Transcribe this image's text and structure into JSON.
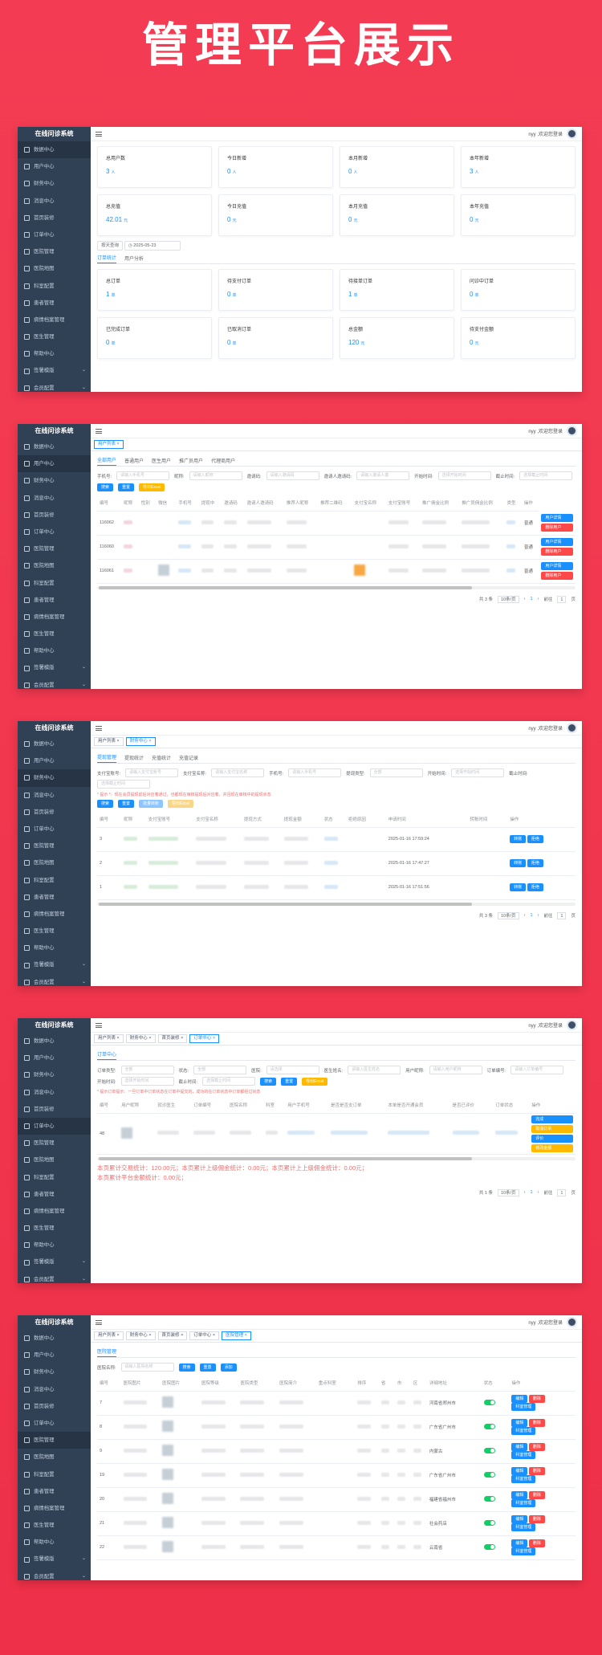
{
  "hero": {
    "title": "管理平台展示"
  },
  "app": {
    "brand": "在线问诊系统",
    "greeting": "nyy ,欢迎您登录"
  },
  "sidebar": {
    "items": [
      "数据中心",
      "用户中心",
      "财务中心",
      "消息中心",
      "首页装修",
      "订单中心",
      "医院管理",
      "医院地图",
      "科室配置",
      "患者管理",
      "病情档案管理",
      "医生管理",
      "帮助中心",
      "签署模版",
      "会员配置"
    ]
  },
  "s1": {
    "cards": [
      {
        "label": "总用户数",
        "value": "3",
        "unit": "人"
      },
      {
        "label": "今日新增",
        "value": "0",
        "unit": "人"
      },
      {
        "label": "本月新增",
        "value": "0",
        "unit": "人"
      },
      {
        "label": "本年新增",
        "value": "3",
        "unit": "人"
      },
      {
        "label": "总充值",
        "value": "42.01",
        "unit": "元"
      },
      {
        "label": "今日充值",
        "value": "0",
        "unit": "元"
      },
      {
        "label": "本月充值",
        "value": "0",
        "unit": "元"
      },
      {
        "label": "本年充值",
        "value": "0",
        "unit": "元"
      }
    ],
    "filter": "按天查询",
    "date": "2025-05-23",
    "tabs": [
      "订单统计",
      "用户分析"
    ],
    "ordercards": [
      {
        "label": "总订单",
        "value": "1",
        "unit": "单"
      },
      {
        "label": "待支付订单",
        "value": "0",
        "unit": "单"
      },
      {
        "label": "待接单订单",
        "value": "1",
        "unit": "单"
      },
      {
        "label": "问诊中订单",
        "value": "0",
        "unit": "单"
      },
      {
        "label": "已完成订单",
        "value": "0",
        "unit": "单"
      },
      {
        "label": "已取消订单",
        "value": "0",
        "unit": "单"
      },
      {
        "label": "总金额",
        "value": "120",
        "unit": "元"
      },
      {
        "label": "待支付金额",
        "value": "0",
        "unit": "元"
      }
    ]
  },
  "s2": {
    "tag": "用户列表",
    "tabs": [
      "全部用户",
      "普通用户",
      "医生用户",
      "推广员用户",
      "代理商用户"
    ],
    "filters": [
      {
        "label": "手机号:",
        "ph": "请输入手机号"
      },
      {
        "label": "昵称:",
        "ph": "请输入昵称"
      },
      {
        "label": "邀请码:",
        "ph": "请输入邀请码"
      },
      {
        "label": "邀请人邀请码:",
        "ph": "请输入邀请人邀"
      },
      {
        "label": "开始时间:",
        "ph": "选择开始时间"
      },
      {
        "label": "截止时间:",
        "ph": "选择截止时间"
      }
    ],
    "buttons": [
      "搜索",
      "重置",
      "导出Excel"
    ],
    "cols": [
      "编号",
      "昵称",
      "性别",
      "微信",
      "手机号",
      "提现中",
      "邀请码",
      "邀请人邀请码",
      "推荐人昵称",
      "推荐二维码",
      "支付宝名称",
      "支付宝账号",
      "推广佣金比例",
      "推广员佣金比例",
      "类型",
      "操作"
    ],
    "rows": [
      "116062",
      "116060",
      "116061"
    ],
    "types": [
      "普通",
      "普通",
      "普通"
    ],
    "ops": [
      "用户详情",
      "删除用户"
    ],
    "pager": {
      "total": "共 3 条",
      "size": "10条/页",
      "page": "1",
      "goto": "前往",
      "pageno": "1",
      "pagesuf": "页"
    }
  },
  "s3": {
    "tags": [
      "用户列表",
      "财务中心"
    ],
    "tabs": [
      "提现管理",
      "提现统计",
      "充值统计",
      "充值记录"
    ],
    "filters": [
      {
        "label": "支付宝账号:",
        "ph": "请输入支付宝账号"
      },
      {
        "label": "支付宝名称:",
        "ph": "请输入支付宝名称"
      },
      {
        "label": "手机号:",
        "ph": "请输入手机号"
      },
      {
        "label": "提现类型:",
        "ph": "全部"
      },
      {
        "label": "开始时间:",
        "ph": "选择开始时间"
      },
      {
        "label": "截止时间:",
        "ph": "选择截止时间"
      }
    ],
    "warn": "* 提示 *：现在会员提现前后对应着通过，也都现在审核提现后对应着。并且现在审核中的提现状态",
    "buttons": [
      "搜索",
      "重置",
      "批量转账",
      "导出Excel"
    ],
    "cols": [
      "编号",
      "昵称",
      "支付宝账号",
      "支付宝名称",
      "提现方式",
      "提现金额",
      "状态",
      "拒绝原因",
      "申请时间",
      "转账时间",
      "操作"
    ],
    "rows": [
      {
        "id": "3",
        "time": "2025-01-16 17:59:24"
      },
      {
        "id": "2",
        "time": "2025-01-16 17:47:27"
      },
      {
        "id": "1",
        "time": "2025-01-16 17:51:56"
      }
    ],
    "ops": [
      "转账",
      "拒绝"
    ],
    "pager": {
      "total": "共 3 条",
      "size": "10条/页",
      "page": "1",
      "goto": "前往",
      "pageno": "1",
      "pagesuf": "页"
    }
  },
  "s4": {
    "tags": [
      "用户列表",
      "财务中心",
      "首页装修",
      "订单中心"
    ],
    "tab": "订单中心",
    "filters": [
      {
        "label": "订单类型:",
        "ph": "全部"
      },
      {
        "label": "状态:",
        "ph": "全部"
      },
      {
        "label": "医院:",
        "ph": "请选择"
      },
      {
        "label": "医生姓名:",
        "ph": "请输入医生姓名"
      },
      {
        "label": "用户昵称:",
        "ph": "请输入用户昵称"
      },
      {
        "label": "订单编号:",
        "ph": "请输入订单编号"
      },
      {
        "label": "开始时间:",
        "ph": "选择开始时间"
      },
      {
        "label": "截止时间:",
        "ph": "选择截止时间"
      }
    ],
    "warn": "* 提示订单提示：一旦订单中订单状态在订单中提交的，成功的在订单状态中订单都经过状态",
    "buttons": [
      "搜索",
      "重置",
      "导出Excel"
    ],
    "cols": [
      "编号",
      "用户昵称",
      "就诊医生",
      "订单编号",
      "医院名称",
      "科室",
      "用户手机号",
      "是否是否支订单",
      "本单是否开通会员",
      "是否已评价",
      "订单状态",
      "操作"
    ],
    "row": {
      "id": "48"
    },
    "ops": [
      "完成",
      "取消订单",
      "评价",
      "修改金额"
    ],
    "stats": [
      "本页累计交易统计：120.00元；本页累计上级佣金统计：0.00元；本页累计上上级佣金统计：0.00元；",
      "本页累计平台金额统计：0.00元；"
    ],
    "pager": {
      "total": "共 1 条",
      "size": "10条/页",
      "page": "1",
      "goto": "前往",
      "pageno": "1",
      "pagesuf": "页"
    }
  },
  "s5": {
    "tags": [
      "用户列表",
      "财务中心",
      "首页装修",
      "订单中心",
      "医院管理"
    ],
    "tab": "医院管理",
    "filter": {
      "label": "医院名称:",
      "ph": "请输入医院名称"
    },
    "buttons": [
      "搜索",
      "重置",
      "添加"
    ],
    "cols": [
      "编号",
      "医院图片",
      "医院图片",
      "医院等级",
      "医院类型",
      "医院简介",
      "重点科室",
      "排序",
      "省",
      "市",
      "区",
      "详细地址",
      "状态",
      "操作"
    ],
    "rows": [
      "7",
      "8",
      "9",
      "19",
      "20",
      "21",
      "22"
    ],
    "addrs": [
      "河南省郑州市",
      "广东省广州市",
      "内蒙古",
      "广东省广州市",
      "福建省福州市",
      "社会药店",
      "云南省"
    ],
    "ops": [
      "编辑",
      "删除",
      "科室管理"
    ]
  }
}
